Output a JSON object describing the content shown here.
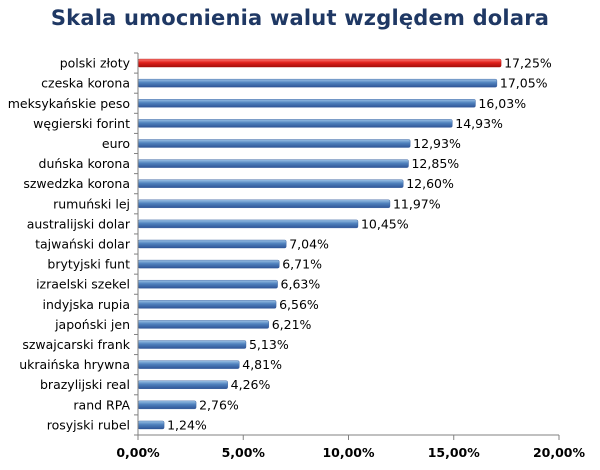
{
  "chart_data": {
    "type": "bar",
    "orientation": "horizontal",
    "title": "Skala umocnienia walut względem dolara",
    "xlabel": "",
    "ylabel": "",
    "xlim": [
      0,
      20
    ],
    "xticks": [
      0,
      5,
      10,
      15,
      20
    ],
    "xtick_labels": [
      "0,00%",
      "5,00%",
      "10,00%",
      "15,00%",
      "20,00%"
    ],
    "grid": false,
    "legend": "none",
    "categories": [
      "polski złoty",
      "czeska korona",
      "meksykańskie peso",
      "węgierski forint",
      "euro",
      "duńska korona",
      "szwedzka korona",
      "rumuński lej",
      "australijski dolar",
      "tajwański dolar",
      "brytyjski funt",
      "izraelski szekel",
      "indyjska rupia",
      "japoński jen",
      "szwajcarski frank",
      "ukraińska hrywna",
      "brazylijski real",
      "rand RPA",
      "rosyjski rubel"
    ],
    "values": [
      17.25,
      17.05,
      16.03,
      14.93,
      12.93,
      12.85,
      12.6,
      11.97,
      10.45,
      7.04,
      6.71,
      6.63,
      6.56,
      6.21,
      5.13,
      4.81,
      4.26,
      2.76,
      1.24
    ],
    "value_labels": [
      "17,25%",
      "17,05%",
      "16,03%",
      "14,93%",
      "12,93%",
      "12,85%",
      "12,60%",
      "11,97%",
      "10,45%",
      "7,04%",
      "6,71%",
      "6,63%",
      "6,56%",
      "6,21%",
      "5,13%",
      "4,81%",
      "4,26%",
      "2,76%",
      "1,24%"
    ],
    "highlight_index": 0,
    "colors": {
      "bar": "#4F81BD",
      "bar_light": "#9DC3E6",
      "bar_dark": "#2F5597",
      "highlight": "#E0201B",
      "highlight_light": "#FF7A75",
      "highlight_dark": "#A50E0A",
      "title": "#1F3864",
      "axis": "#808080"
    }
  }
}
